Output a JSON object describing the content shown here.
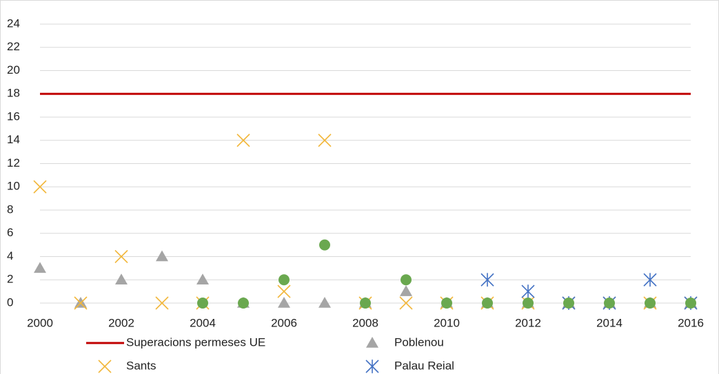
{
  "chart_data": {
    "type": "scatter",
    "x": [
      2000,
      2001,
      2002,
      2003,
      2004,
      2005,
      2006,
      2007,
      2008,
      2009,
      2010,
      2011,
      2012,
      2013,
      2014,
      2015,
      2016
    ],
    "xlim": [
      2000,
      2016
    ],
    "xticks": [
      2000,
      2002,
      2004,
      2006,
      2008,
      2010,
      2012,
      2014,
      2016
    ],
    "ylim": [
      0,
      24
    ],
    "yticks": [
      0,
      2,
      4,
      6,
      8,
      10,
      12,
      14,
      16,
      18,
      20,
      22,
      24
    ],
    "grid": true,
    "series": [
      {
        "name": "Superacions permeses UE",
        "color": "#c00000",
        "marker": "line",
        "values": [
          18,
          18,
          18,
          18,
          18,
          18,
          18,
          18,
          18,
          18,
          18,
          18,
          18,
          18,
          18,
          18,
          18
        ]
      },
      {
        "name": "Poblenou",
        "color": "#a5a5a5",
        "marker": "triangle",
        "values": [
          3,
          0,
          2,
          4,
          2,
          0,
          0,
          0,
          0,
          1,
          0,
          0,
          0,
          0,
          0,
          0,
          0
        ]
      },
      {
        "name": "Sants",
        "color": "#f2b73b",
        "marker": "x",
        "values": [
          10,
          0,
          4,
          0,
          0,
          14,
          1,
          14,
          0,
          0,
          0,
          0,
          0,
          0,
          0,
          0,
          0
        ]
      },
      {
        "name": "Palau Reial",
        "color": "#4472c4",
        "marker": "asterisk",
        "values": [
          null,
          null,
          null,
          null,
          null,
          null,
          null,
          null,
          null,
          null,
          null,
          2,
          1,
          0,
          0,
          2,
          0
        ]
      },
      {
        "color": "#6aa84f",
        "marker": "circle",
        "values": [
          null,
          null,
          null,
          null,
          0,
          0,
          2,
          5,
          0,
          2,
          0,
          0,
          0,
          0,
          0,
          0,
          0
        ]
      }
    ]
  }
}
